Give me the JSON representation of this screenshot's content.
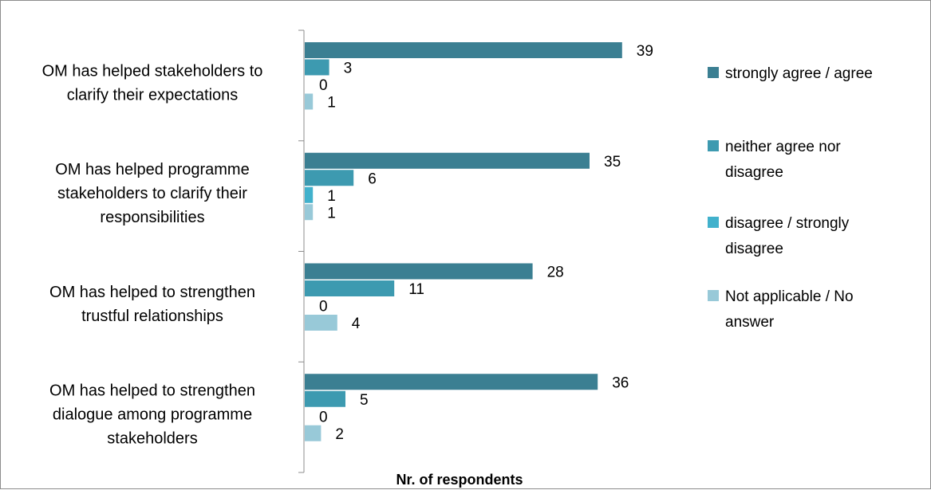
{
  "chart_data": {
    "type": "bar",
    "orientation": "horizontal",
    "categories": [
      [
        "OM has helped stakeholders to",
        "clarify their expectations"
      ],
      [
        "OM has helped programme",
        "stakeholders to clarify their",
        "responsibilities"
      ],
      [
        "OM has helped to strengthen",
        "trustful relationships"
      ],
      [
        "OM has helped to strengthen",
        "dialogue among programme",
        "stakeholders"
      ]
    ],
    "series": [
      {
        "name": "strongly agree / agree",
        "color": "#3b7f92",
        "values": [
          39,
          35,
          28,
          36
        ]
      },
      {
        "name": "neither agree nor disagree",
        "color": "#3d9ab0",
        "values": [
          3,
          6,
          11,
          5
        ]
      },
      {
        "name": "disagree / strongly disagree",
        "color": "#41b1cc",
        "values": [
          0,
          1,
          0,
          0
        ]
      },
      {
        "name": "Not applicable / No answer",
        "color": "#98c9d8",
        "values": [
          1,
          1,
          4,
          2
        ]
      }
    ],
    "legend_labels": [
      [
        "strongly agree / agree"
      ],
      [
        "neither agree nor",
        "disagree"
      ],
      [
        "disagree / strongly",
        "disagree"
      ],
      [
        "Not applicable / No",
        "answer"
      ]
    ],
    "xlabel": "Nr. of respondents",
    "xlim": [
      0,
      41
    ],
    "grid": false,
    "legend_position": "right"
  }
}
